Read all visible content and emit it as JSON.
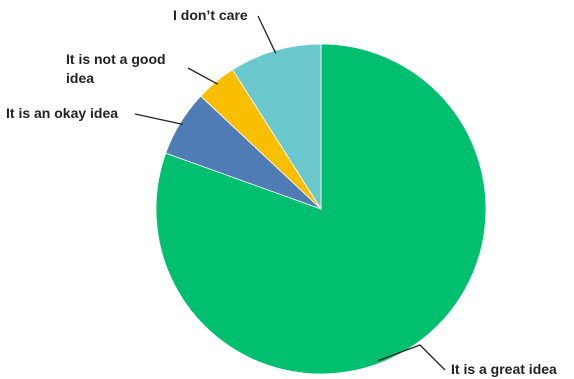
{
  "chart_data": {
    "type": "pie",
    "title": "",
    "slices": [
      {
        "label": "It is a great idea",
        "value": 80.5,
        "color": "#00bf6f"
      },
      {
        "label": "It is an okay idea",
        "value": 6.5,
        "color": "#507cb6"
      },
      {
        "label": "It is not a good idea",
        "value": 4.0,
        "color": "#f9be00"
      },
      {
        "label": "I don’t care",
        "value": 9.0,
        "color": "#6bc8cd"
      }
    ],
    "start_angle_deg": 0,
    "direction": "clockwise",
    "legend": "none",
    "labels": "outside with leader lines"
  }
}
